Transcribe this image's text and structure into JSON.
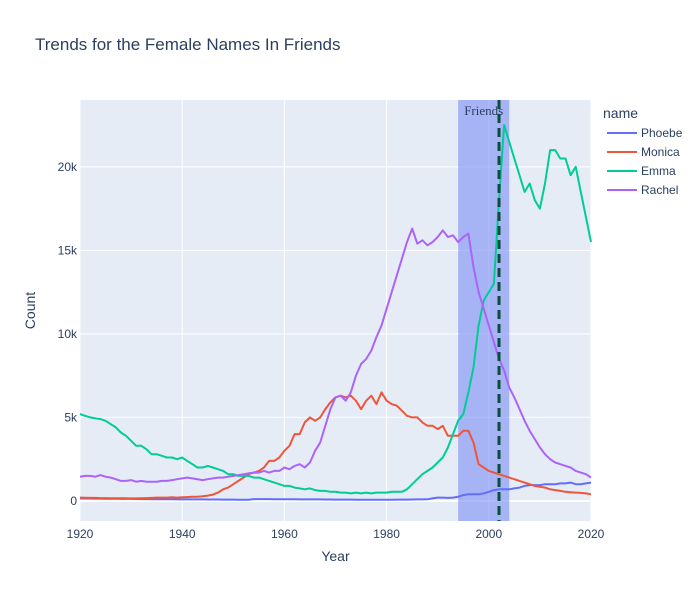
{
  "chart_data": {
    "type": "line",
    "title": "Trends for the Female Names In Friends",
    "xlabel": "Year",
    "ylabel": "Count",
    "xlim": [
      1920,
      2020
    ],
    "ylim": [
      -1200,
      24000
    ],
    "xticks": [
      1920,
      1940,
      1960,
      1980,
      2000,
      2020
    ],
    "yticks": [
      0,
      5000,
      10000,
      15000,
      20000
    ],
    "ytick_labels": [
      "0",
      "5k",
      "10k",
      "15k",
      "20k"
    ],
    "grid": true,
    "legend": {
      "title": "name",
      "placement": "right"
    },
    "shaded_region": {
      "x0": 1994,
      "x1": 2004,
      "label": "Friends",
      "color": "#8c9cf7"
    },
    "vline": {
      "x": 2002,
      "color": "#0a4d3c",
      "style": "dashed"
    },
    "years": [
      1920,
      1921,
      1922,
      1923,
      1924,
      1925,
      1926,
      1927,
      1928,
      1929,
      1930,
      1931,
      1932,
      1933,
      1934,
      1935,
      1936,
      1937,
      1938,
      1939,
      1940,
      1941,
      1942,
      1943,
      1944,
      1945,
      1946,
      1947,
      1948,
      1949,
      1950,
      1951,
      1952,
      1953,
      1954,
      1955,
      1956,
      1957,
      1958,
      1959,
      1960,
      1961,
      1962,
      1963,
      1964,
      1965,
      1966,
      1967,
      1968,
      1969,
      1970,
      1971,
      1972,
      1973,
      1974,
      1975,
      1976,
      1977,
      1978,
      1979,
      1980,
      1981,
      1982,
      1983,
      1984,
      1985,
      1986,
      1987,
      1988,
      1989,
      1990,
      1991,
      1992,
      1993,
      1994,
      1995,
      1996,
      1997,
      1998,
      1999,
      2000,
      2001,
      2002,
      2003,
      2004,
      2005,
      2006,
      2007,
      2008,
      2009,
      2010,
      2011,
      2012,
      2013,
      2014,
      2015,
      2016,
      2017,
      2018,
      2019,
      2020
    ],
    "series": [
      {
        "name": "Phoebe",
        "color": "#636efa",
        "values": [
          150,
          145,
          145,
          140,
          140,
          135,
          130,
          130,
          125,
          120,
          120,
          115,
          110,
          110,
          105,
          105,
          100,
          100,
          100,
          95,
          95,
          95,
          90,
          90,
          90,
          85,
          85,
          85,
          80,
          80,
          80,
          75,
          75,
          75,
          110,
          110,
          110,
          110,
          105,
          105,
          100,
          100,
          100,
          95,
          95,
          90,
          90,
          90,
          85,
          85,
          80,
          80,
          80,
          80,
          75,
          75,
          75,
          75,
          75,
          75,
          75,
          75,
          80,
          80,
          80,
          85,
          90,
          90,
          100,
          150,
          200,
          200,
          180,
          200,
          250,
          350,
          400,
          400,
          400,
          450,
          550,
          650,
          700,
          700,
          700,
          750,
          800,
          900,
          950,
          950,
          950,
          1000,
          1000,
          1000,
          1050,
          1050,
          1100,
          1000,
          1000,
          1050,
          1100
        ]
      },
      {
        "name": "Monica",
        "color": "#ef553b",
        "values": [
          200,
          190,
          180,
          180,
          170,
          170,
          160,
          160,
          160,
          160,
          150,
          150,
          160,
          170,
          180,
          200,
          200,
          200,
          220,
          200,
          220,
          230,
          250,
          250,
          280,
          320,
          380,
          500,
          700,
          800,
          1000,
          1200,
          1400,
          1600,
          1700,
          1800,
          2000,
          2400,
          2400,
          2600,
          3000,
          3300,
          4000,
          4000,
          4700,
          5000,
          4800,
          5000,
          5500,
          5900,
          6200,
          6300,
          6200,
          6300,
          6000,
          5500,
          6000,
          6300,
          5800,
          6500,
          6000,
          5800,
          5700,
          5400,
          5100,
          5000,
          5000,
          4700,
          4500,
          4500,
          4300,
          4500,
          3900,
          3900,
          3900,
          4200,
          4200,
          3500,
          2200,
          2000,
          1800,
          1700,
          1600,
          1500,
          1400,
          1300,
          1200,
          1100,
          1000,
          900,
          850,
          800,
          700,
          650,
          600,
          550,
          520,
          500,
          480,
          450,
          400
        ]
      },
      {
        "name": "Emma",
        "color": "#00cc96",
        "values": [
          5200,
          5100,
          5000,
          4950,
          4900,
          4800,
          4600,
          4400,
          4100,
          3900,
          3600,
          3300,
          3300,
          3100,
          2800,
          2800,
          2700,
          2600,
          2600,
          2500,
          2600,
          2400,
          2200,
          2000,
          2000,
          2100,
          2000,
          1900,
          1800,
          1600,
          1600,
          1500,
          1500,
          1500,
          1400,
          1400,
          1300,
          1200,
          1100,
          1000,
          900,
          900,
          800,
          750,
          700,
          750,
          650,
          600,
          600,
          550,
          550,
          500,
          500,
          450,
          500,
          450,
          500,
          450,
          500,
          500,
          500,
          550,
          550,
          550,
          700,
          1000,
          1300,
          1600,
          1800,
          2000,
          2300,
          2600,
          3200,
          4000,
          4800,
          5200,
          6500,
          8000,
          10500,
          12000,
          12500,
          13000,
          18000,
          22500,
          21500,
          20500,
          19500,
          18500,
          19000,
          18000,
          17500,
          19000,
          21000,
          21000,
          20500,
          20500,
          19500,
          20000,
          18500,
          17000,
          15500
        ]
      },
      {
        "name": "Rachel",
        "color": "#ab63fa",
        "values": [
          1450,
          1500,
          1500,
          1450,
          1550,
          1450,
          1400,
          1300,
          1200,
          1200,
          1250,
          1150,
          1200,
          1150,
          1150,
          1150,
          1200,
          1200,
          1250,
          1300,
          1350,
          1400,
          1350,
          1300,
          1250,
          1300,
          1350,
          1400,
          1400,
          1450,
          1500,
          1550,
          1600,
          1650,
          1700,
          1700,
          1800,
          1700,
          1800,
          1800,
          2000,
          1900,
          2100,
          2200,
          2000,
          2300,
          3000,
          3500,
          4500,
          5500,
          6200,
          6300,
          6000,
          6500,
          7500,
          8200,
          8500,
          9000,
          9800,
          10500,
          11500,
          12500,
          13500,
          14500,
          15500,
          16300,
          15400,
          15600,
          15300,
          15500,
          15800,
          16200,
          15800,
          15900,
          15500,
          15800,
          16000,
          14000,
          12500,
          11500,
          10500,
          9500,
          8500,
          7800,
          6800,
          6200,
          5500,
          4800,
          4200,
          3700,
          3200,
          2800,
          2500,
          2300,
          2200,
          2100,
          2000,
          1800,
          1700,
          1600,
          1400
        ]
      }
    ]
  }
}
